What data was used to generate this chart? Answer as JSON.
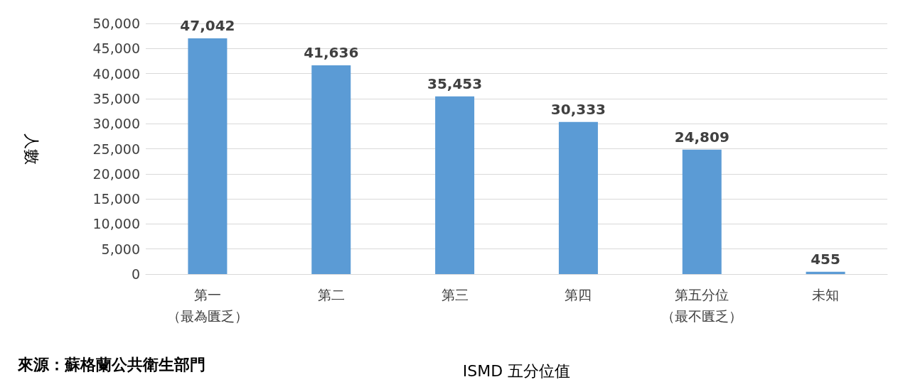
{
  "chart_data": {
    "type": "bar",
    "xlabel": "ISMD 五分位值",
    "ylabel": "人數",
    "categories": [
      "第一（最為匱乏）",
      "第二",
      "第三",
      "第四",
      "第五分位（最不匱乏）",
      "未知"
    ],
    "values": [
      47042,
      41636,
      35453,
      30333,
      24809,
      455
    ],
    "color": "#5b9bd5",
    "value_labels": [
      "47,042",
      "41,636",
      "35,453",
      "30,333",
      "24,809",
      "455"
    ],
    "ylim": [
      0,
      50000
    ],
    "yticks": [
      0,
      {
        "value": 5000,
        "label": "5,000"
      },
      {
        "value": 10000,
        "label": "10,000"
      },
      {
        "value": 15000,
        "label": "15,000"
      },
      {
        "value": 20000,
        "label": "20,000"
      },
      {
        "value": 25000,
        "label": "25,000"
      },
      {
        "value": 30000,
        "label": "30,000"
      },
      {
        "value": 35000,
        "label": "35,000"
      },
      {
        "value": 40000,
        "label": "40,000"
      },
      {
        "value": 45000,
        "label": "45,000"
      },
      {
        "value": 50000,
        "label": "50,000"
      }
    ],
    "grid": "y",
    "annotations": [
      "來源：蘇格蘭公共衛生部門"
    ]
  }
}
